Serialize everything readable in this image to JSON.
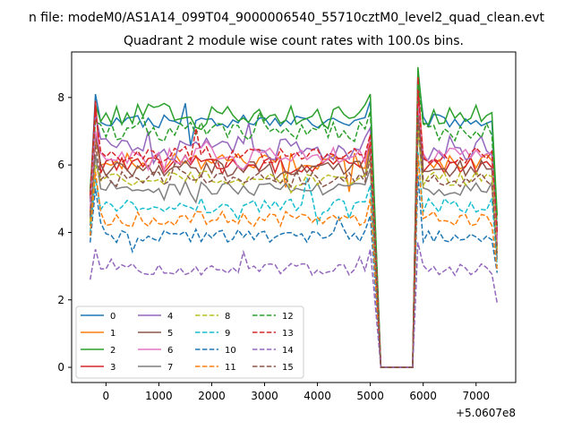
{
  "chart_data": {
    "type": "line",
    "suptitle": "n file: modeM0/AS1A14_099T04_9000006540_55710cztM0_level2_quad_clean.evt",
    "title": "Quadrant 2 module wise count rates with 100.0s bins.",
    "xlabel": "",
    "ylabel": "",
    "x_offset_label": "+5.0607e8",
    "xlim": [
      -650,
      7750
    ],
    "ylim": [
      -0.45,
      9.35
    ],
    "x_ticks": [
      0,
      1000,
      2000,
      3000,
      4000,
      5000,
      6000,
      7000
    ],
    "y_ticks": [
      0,
      2,
      4,
      6,
      8
    ],
    "grid": false,
    "legend_position": "lower-left",
    "legend_columns": 4,
    "segments": [
      {
        "x_start": -300,
        "x_end": 5000,
        "step": 100
      },
      {
        "x_start": 5200,
        "x_end": 5800,
        "step": 100,
        "constant": 0
      },
      {
        "x_start": 5800,
        "x_end": 7400,
        "step": 100
      }
    ],
    "series": [
      {
        "name": "0",
        "color": "#1f77b4",
        "dash": "solid",
        "base": 7.3,
        "first": 5.0,
        "peak": 8.1,
        "peak2": 8.7,
        "drop": 4.0,
        "noise": 0.2
      },
      {
        "name": "1",
        "color": "#ff7f0e",
        "dash": "solid",
        "base": 6.1,
        "first": 4.6,
        "peak": 6.8,
        "peak2": 8.3,
        "drop": 3.5,
        "noise": 0.25
      },
      {
        "name": "2",
        "color": "#2ca02c",
        "dash": "solid",
        "base": 7.5,
        "first": 5.2,
        "peak": 7.8,
        "peak2": 8.9,
        "drop": 4.5,
        "noise": 0.3
      },
      {
        "name": "3",
        "color": "#d62728",
        "dash": "solid",
        "base": 6.0,
        "first": 5.0,
        "peak": 7.9,
        "peak2": 8.6,
        "drop": 3.9,
        "noise": 0.25
      },
      {
        "name": "4",
        "color": "#9467bd",
        "dash": "solid",
        "base": 6.5,
        "first": 4.9,
        "peak": 7.5,
        "peak2": 8.0,
        "drop": 3.8,
        "noise": 0.35
      },
      {
        "name": "5",
        "color": "#8c564b",
        "dash": "solid",
        "base": 5.9,
        "first": 4.4,
        "peak": 6.9,
        "peak2": 7.6,
        "drop": 3.6,
        "noise": 0.25
      },
      {
        "name": "6",
        "color": "#e377c2",
        "dash": "solid",
        "base": 6.3,
        "first": 4.7,
        "peak": 7.0,
        "peak2": 7.9,
        "drop": 3.7,
        "noise": 0.25
      },
      {
        "name": "7",
        "color": "#7f7f7f",
        "dash": "solid",
        "base": 5.3,
        "first": 4.2,
        "peak": 6.3,
        "peak2": 7.1,
        "drop": 3.2,
        "noise": 0.22
      },
      {
        "name": "8",
        "color": "#bcbd22",
        "dash": "dashed",
        "base": 5.6,
        "first": 4.3,
        "peak": 6.0,
        "peak2": 7.2,
        "drop": 3.4,
        "noise": 0.22
      },
      {
        "name": "9",
        "color": "#17becf",
        "dash": "dashed",
        "base": 4.8,
        "first": 4.0,
        "peak": 5.6,
        "peak2": 6.4,
        "drop": 3.0,
        "noise": 0.22
      },
      {
        "name": "10",
        "color": "#1f77b4",
        "dash": "dashed",
        "base": 3.9,
        "first": 3.7,
        "peak": 5.3,
        "peak2": 5.7,
        "drop": 2.8,
        "noise": 0.2
      },
      {
        "name": "11",
        "color": "#ff7f0e",
        "dash": "dashed",
        "base": 4.4,
        "first": 3.9,
        "peak": 5.8,
        "peak2": 6.3,
        "drop": 2.9,
        "noise": 0.22
      },
      {
        "name": "12",
        "color": "#2ca02c",
        "dash": "dashed",
        "base": 7.0,
        "first": 5.3,
        "peak": 7.3,
        "peak2": 8.4,
        "drop": 4.2,
        "noise": 0.3
      },
      {
        "name": "13",
        "color": "#d62728",
        "dash": "dashed",
        "base": 6.3,
        "first": 5.1,
        "peak": 7.6,
        "peak2": 8.2,
        "drop": 4.0,
        "noise": 0.25
      },
      {
        "name": "14",
        "color": "#9467bd",
        "dash": "dashed",
        "base": 2.9,
        "first": 2.6,
        "peak": 3.5,
        "peak2": 3.7,
        "drop": 1.9,
        "noise": 0.18
      },
      {
        "name": "15",
        "color": "#8c564b",
        "dash": "dashed",
        "base": 5.6,
        "first": 4.5,
        "peak": 6.6,
        "peak2": 7.4,
        "drop": 3.3,
        "noise": 0.25
      }
    ]
  }
}
